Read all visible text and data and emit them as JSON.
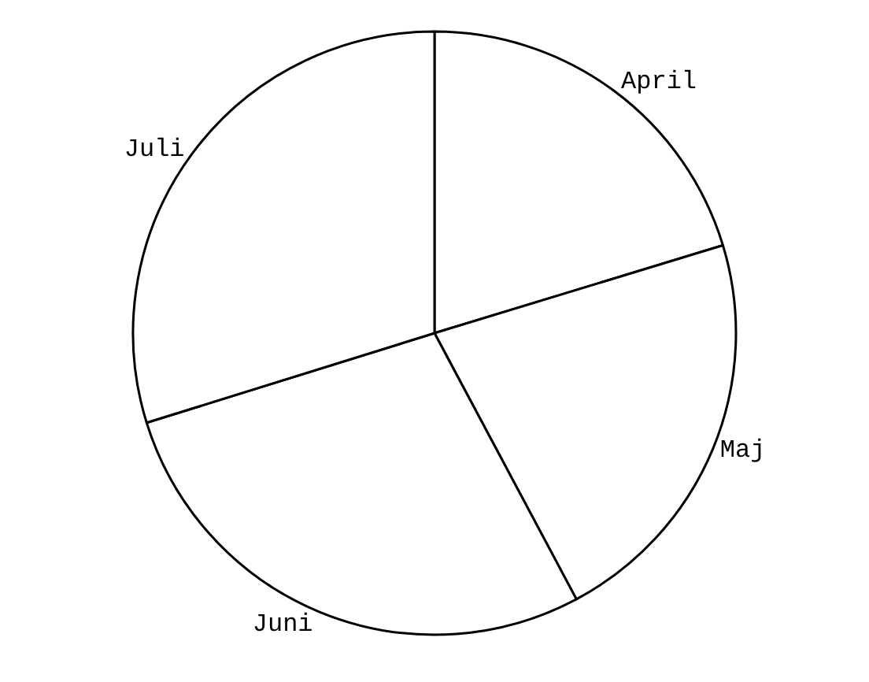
{
  "chart_data": {
    "type": "pie",
    "categories": [
      "April",
      "Maj",
      "Juni",
      "Juli"
    ],
    "values": [
      20.3,
      21.9,
      28.0,
      29.8
    ],
    "colors": [
      "#ffffff",
      "#ffffff",
      "#ffffff",
      "#ffffff"
    ],
    "legend": false
  }
}
